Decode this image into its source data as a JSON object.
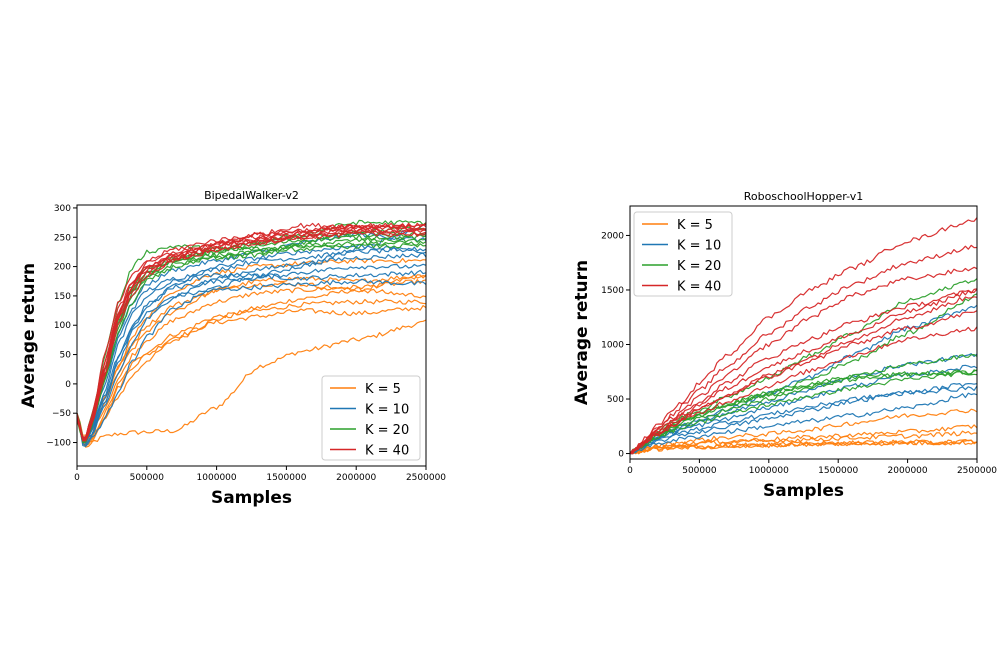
{
  "colors": {
    "K = 5": "#ff7f0e",
    "K = 10": "#1f77b4",
    "K = 20": "#2ca02c",
    "K = 40": "#d62728"
  },
  "chart_data": [
    {
      "type": "line",
      "title": "BipedalWalker-v2",
      "xlabel": "Samples",
      "ylabel": "Average return",
      "xlim": [
        0,
        2500000
      ],
      "ylim": [
        -140,
        305
      ],
      "xticks": [
        0,
        500000,
        1000000,
        1500000,
        2000000,
        2500000
      ],
      "xtick_labels": [
        "0",
        "500000",
        "1000000",
        "1500000",
        "2000000",
        "2500000"
      ],
      "yticks": [
        -100,
        -50,
        0,
        50,
        100,
        150,
        200,
        250,
        300
      ],
      "ytick_labels": [
        "−100",
        "−50",
        "0",
        "50",
        "100",
        "150",
        "200",
        "250",
        "300"
      ],
      "legend_position": "lower-right",
      "legend": [
        "K = 5",
        "K = 10",
        "K = 20",
        "K = 40"
      ],
      "x": [
        0,
        50000,
        100000,
        200000,
        300000,
        400000,
        500000,
        700000,
        1000000,
        1300000,
        1600000,
        2000000,
        2500000
      ],
      "series": [
        {
          "name": "K = 5",
          "runs": [
            [
              -55,
              -105,
              -100,
              -90,
              -85,
              -83,
              -82,
              -80,
              -40,
              30,
              55,
              75,
              105
            ],
            [
              -60,
              -108,
              -100,
              -60,
              -20,
              15,
              40,
              75,
              110,
              130,
              145,
              160,
              185
            ],
            [
              -55,
              -100,
              -95,
              -50,
              0,
              35,
              55,
              85,
              115,
              125,
              135,
              140,
              140
            ],
            [
              -50,
              -110,
              -95,
              -55,
              -5,
              30,
              50,
              80,
              105,
              115,
              125,
              120,
              130
            ],
            [
              -55,
              -105,
              -90,
              -40,
              10,
              50,
              75,
              110,
              140,
              155,
              160,
              165,
              175
            ],
            [
              -60,
              -100,
              -85,
              -30,
              20,
              60,
              90,
              125,
              160,
              175,
              180,
              175,
              185
            ],
            [
              -55,
              -98,
              -80,
              -20,
              30,
              70,
              100,
              135,
              160,
              170,
              170,
              160,
              150
            ],
            [
              -50,
              -95,
              -75,
              -25,
              30,
              80,
              115,
              160,
              190,
              200,
              205,
              210,
              210
            ]
          ]
        },
        {
          "name": "K = 10",
          "runs": [
            [
              -50,
              -110,
              -90,
              -30,
              40,
              90,
              120,
              150,
              160,
              165,
              170,
              175,
              170
            ],
            [
              -55,
              -105,
              -85,
              -10,
              70,
              120,
              150,
              175,
              185,
              185,
              180,
              185,
              190
            ],
            [
              -60,
              -100,
              -80,
              0,
              80,
              130,
              160,
              180,
              195,
              210,
              215,
              225,
              230
            ],
            [
              -55,
              -100,
              -75,
              10,
              90,
              140,
              170,
              195,
              210,
              225,
              240,
              255,
              245
            ],
            [
              -60,
              -95,
              -90,
              -40,
              20,
              70,
              110,
              150,
              180,
              195,
              205,
              215,
              220
            ],
            [
              -55,
              -110,
              -95,
              -60,
              -10,
              40,
              80,
              130,
              165,
              185,
              200,
              230,
              270
            ],
            [
              -50,
              -100,
              -80,
              -20,
              50,
              100,
              135,
              165,
              175,
              180,
              190,
              200,
              200
            ],
            [
              -55,
              -105,
              -85,
              -25,
              45,
              95,
              130,
              170,
              200,
              215,
              225,
              235,
              225
            ]
          ]
        },
        {
          "name": "K = 20",
          "runs": [
            [
              -55,
              -100,
              -60,
              50,
              140,
              200,
              225,
              235,
              230,
              230,
              235,
              240,
              240
            ],
            [
              -60,
              -105,
              -70,
              20,
              110,
              160,
              190,
              215,
              230,
              240,
              250,
              255,
              255
            ],
            [
              -55,
              -100,
              -65,
              30,
              120,
              170,
              195,
              215,
              225,
              235,
              245,
              250,
              250
            ],
            [
              -55,
              -95,
              -70,
              10,
              100,
              150,
              180,
              205,
              215,
              220,
              235,
              245,
              245
            ],
            [
              -60,
              -105,
              -75,
              5,
              90,
              140,
              175,
              200,
              215,
              225,
              240,
              260,
              265
            ],
            [
              -55,
              -100,
              -70,
              15,
              105,
              155,
              185,
              210,
              225,
              240,
              255,
              275,
              275
            ],
            [
              -50,
              -98,
              -65,
              25,
              110,
              160,
              190,
              210,
              220,
              225,
              230,
              235,
              235
            ]
          ]
        },
        {
          "name": "K = 40",
          "runs": [
            [
              -55,
              -100,
              -65,
              40,
              130,
              175,
              200,
              220,
              240,
              255,
              270,
              270,
              270
            ],
            [
              -60,
              -95,
              -60,
              50,
              140,
              185,
              210,
              230,
              245,
              255,
              262,
              265,
              265
            ],
            [
              -55,
              -100,
              -70,
              30,
              120,
              170,
              195,
              215,
              235,
              245,
              255,
              262,
              262
            ],
            [
              -55,
              -105,
              -75,
              20,
              110,
              160,
              190,
              212,
              230,
              240,
              250,
              258,
              258
            ],
            [
              -60,
              -100,
              -70,
              25,
              115,
              165,
              195,
              218,
              235,
              248,
              258,
              268,
              268
            ],
            [
              -55,
              -98,
              -65,
              35,
              125,
              175,
              205,
              225,
              238,
              245,
              250,
              255,
              255
            ],
            [
              -50,
              -102,
              -72,
              15,
              100,
              155,
              185,
              210,
              228,
              242,
              252,
              262,
              262
            ],
            [
              -55,
              -100,
              -68,
              28,
              118,
              168,
              198,
              220,
              238,
              250,
              260,
              270,
              270
            ]
          ]
        }
      ]
    },
    {
      "type": "line",
      "title": "RoboschoolHopper-v1",
      "xlabel": "Samples",
      "ylabel": "Average return",
      "xlim": [
        0,
        2500000
      ],
      "ylim": [
        -50,
        2270
      ],
      "xticks": [
        0,
        500000,
        1000000,
        1500000,
        2000000,
        2500000
      ],
      "xtick_labels": [
        "0",
        "500000",
        "1000000",
        "1500000",
        "2000000",
        "2500000"
      ],
      "yticks": [
        0,
        500,
        1000,
        1500,
        2000
      ],
      "ytick_labels": [
        "0",
        "500",
        "1000",
        "1500",
        "2000"
      ],
      "legend_position": "upper-left",
      "legend": [
        "K = 5",
        "K = 10",
        "K = 20",
        "K = 40"
      ],
      "x": [
        0,
        50000,
        100000,
        200000,
        300000,
        400000,
        500000,
        700000,
        1000000,
        1300000,
        1600000,
        2000000,
        2500000
      ],
      "series": [
        {
          "name": "K = 5",
          "runs": [
            [
              0,
              15,
              25,
              40,
              50,
              55,
              60,
              65,
              75,
              85,
              90,
              95,
              100
            ],
            [
              0,
              18,
              30,
              45,
              55,
              60,
              65,
              72,
              82,
              90,
              98,
              105,
              110
            ],
            [
              0,
              20,
              35,
              55,
              70,
              80,
              90,
              100,
              115,
              130,
              145,
              160,
              190
            ],
            [
              0,
              22,
              40,
              60,
              75,
              90,
              100,
              115,
              130,
              150,
              170,
              200,
              250
            ],
            [
              0,
              25,
              45,
              70,
              90,
              110,
              125,
              150,
              180,
              220,
              280,
              350,
              400
            ],
            [
              0,
              15,
              28,
              42,
              52,
              58,
              62,
              70,
              80,
              88,
              95,
              100,
              105
            ]
          ]
        },
        {
          "name": "K = 10",
          "runs": [
            [
              0,
              30,
              55,
              90,
              120,
              140,
              160,
              200,
              250,
              300,
              350,
              420,
              550
            ],
            [
              0,
              35,
              65,
              110,
              150,
              180,
              200,
              250,
              320,
              400,
              480,
              560,
              650
            ],
            [
              0,
              40,
              80,
              140,
              190,
              230,
              260,
              320,
              420,
              520,
              620,
              720,
              800
            ],
            [
              0,
              45,
              90,
              160,
              220,
              270,
              310,
              400,
              550,
              700,
              900,
              1150,
              1350
            ],
            [
              0,
              38,
              70,
              120,
              170,
              200,
              230,
              290,
              360,
              430,
              500,
              560,
              600
            ],
            [
              0,
              42,
              85,
              150,
              210,
              250,
              290,
              370,
              480,
              590,
              700,
              820,
              900
            ]
          ]
        },
        {
          "name": "K = 20",
          "runs": [
            [
              0,
              40,
              80,
              150,
              210,
              250,
              290,
              360,
              450,
              530,
              600,
              680,
              750
            ],
            [
              0,
              50,
              100,
              190,
              260,
              320,
              370,
              460,
              560,
              640,
              700,
              730,
              750
            ],
            [
              0,
              45,
              90,
              170,
              240,
              300,
              350,
              440,
              550,
              680,
              850,
              1100,
              1450
            ],
            [
              0,
              55,
              110,
              200,
              280,
              350,
              400,
              520,
              700,
              900,
              1100,
              1400,
              1600
            ],
            [
              0,
              48,
              95,
              180,
              250,
              310,
              360,
              450,
              540,
              620,
              680,
              720,
              740
            ],
            [
              0,
              42,
              85,
              160,
              220,
              270,
              320,
              400,
              500,
              600,
              700,
              820,
              900
            ]
          ]
        },
        {
          "name": "K = 40",
          "runs": [
            [
              0,
              60,
              130,
              260,
              380,
              500,
              650,
              900,
              1250,
              1500,
              1700,
              1950,
              2150
            ],
            [
              0,
              55,
              120,
              240,
              350,
              460,
              580,
              800,
              1100,
              1350,
              1550,
              1750,
              1900
            ],
            [
              0,
              50,
              110,
              220,
              320,
              420,
              520,
              720,
              1000,
              1250,
              1450,
              1600,
              1700
            ],
            [
              0,
              50,
              100,
              200,
              290,
              370,
              450,
              600,
              800,
              950,
              1100,
              1300,
              1500
            ],
            [
              0,
              45,
              95,
              180,
              260,
              330,
              400,
              530,
              700,
              850,
              1000,
              1150,
              1300
            ],
            [
              0,
              48,
              98,
              190,
              270,
              340,
              410,
              540,
              720,
              880,
              1050,
              1250,
              1450
            ],
            [
              0,
              52,
              105,
              210,
              300,
              390,
              480,
              650,
              880,
              1050,
              1200,
              1350,
              1500
            ],
            [
              0,
              45,
              90,
              175,
              250,
              310,
              370,
              480,
              620,
              760,
              900,
              1050,
              1150
            ]
          ]
        }
      ]
    }
  ]
}
